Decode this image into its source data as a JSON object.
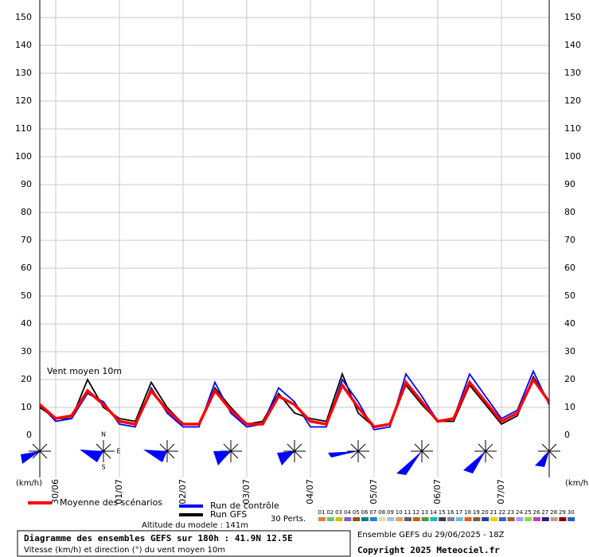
{
  "chart_data": {
    "type": "line",
    "annotation": "Vent moyen 10m",
    "y_unit_left": "(km/h)",
    "y_unit_right": "(km/h)",
    "x": [
      0,
      6,
      12,
      18,
      24,
      30,
      36,
      42,
      48,
      54,
      60,
      66,
      72,
      78,
      84,
      90,
      96,
      102,
      108,
      114,
      120,
      126,
      132,
      138,
      144,
      150,
      156,
      162,
      168,
      174,
      180,
      186,
      192
    ],
    "xlim": [
      0,
      192
    ],
    "xticks": [
      {
        "value": 6,
        "label": "30/06"
      },
      {
        "value": 30,
        "label": "01/07"
      },
      {
        "value": 54,
        "label": "02/07"
      },
      {
        "value": 78,
        "label": "03/07"
      },
      {
        "value": 102,
        "label": "04/07"
      },
      {
        "value": 126,
        "label": "05/07"
      },
      {
        "value": 150,
        "label": "06/07"
      },
      {
        "value": 174,
        "label": "07/07"
      }
    ],
    "ylim": [
      0,
      150
    ],
    "yticks": [
      0,
      10,
      20,
      30,
      40,
      50,
      60,
      70,
      80,
      90,
      100,
      110,
      120,
      130,
      140,
      150
    ],
    "grid": true,
    "series": [
      {
        "name": "Run GFS",
        "color": "#000000",
        "values": [
          10,
          6,
          6,
          20,
          10,
          6,
          5,
          19,
          10,
          4,
          4,
          17,
          10,
          4,
          5,
          15,
          8,
          6,
          5,
          22,
          8,
          3,
          4,
          18,
          11,
          5,
          5,
          18,
          11,
          4,
          7,
          21,
          12
        ]
      },
      {
        "name": "Run de contrôle",
        "color": "#0000ff",
        "values": [
          11,
          5,
          6,
          15,
          12,
          4,
          3,
          17,
          8,
          3,
          3,
          19,
          8,
          3,
          4,
          17,
          12,
          3,
          3,
          20,
          12,
          2,
          3,
          22,
          14,
          5,
          6,
          22,
          14,
          6,
          9,
          23,
          11
        ]
      },
      {
        "name": "Moyenne des scénarios",
        "color": "#ff0000",
        "values": [
          11,
          6,
          7,
          16,
          11,
          5,
          4,
          16,
          9,
          4,
          4,
          16,
          9,
          4,
          4,
          14,
          11,
          5,
          4,
          18,
          10,
          3,
          4,
          19,
          12,
          5,
          6,
          19,
          12,
          5,
          8,
          20,
          12
        ]
      }
    ],
    "perturbations_label": "30 Perts.",
    "perturbations": [
      {
        "name": "01",
        "color": "#e08040"
      },
      {
        "name": "02",
        "color": "#70c070"
      },
      {
        "name": "03",
        "color": "#d0c000"
      },
      {
        "name": "04",
        "color": "#8060c0"
      },
      {
        "name": "05",
        "color": "#905020"
      },
      {
        "name": "06",
        "color": "#008080"
      },
      {
        "name": "07",
        "color": "#2080e0"
      },
      {
        "name": "08",
        "color": "#e0e0a0"
      },
      {
        "name": "09",
        "color": "#a0c0e0"
      },
      {
        "name": "10",
        "color": "#e0a060"
      },
      {
        "name": "11",
        "color": "#606060"
      },
      {
        "name": "12",
        "color": "#c06020"
      },
      {
        "name": "13",
        "color": "#40a040"
      },
      {
        "name": "14",
        "color": "#00c0c0"
      },
      {
        "name": "15",
        "color": "#404040"
      },
      {
        "name": "16",
        "color": "#8080a0"
      },
      {
        "name": "17",
        "color": "#60c0e0"
      },
      {
        "name": "18",
        "color": "#e06020"
      },
      {
        "name": "19",
        "color": "#806040"
      },
      {
        "name": "20",
        "color": "#2040a0"
      },
      {
        "name": "21",
        "color": "#f0d000"
      },
      {
        "name": "22",
        "color": "#4060c0"
      },
      {
        "name": "23",
        "color": "#a06040"
      },
      {
        "name": "24",
        "color": "#a0a0ff"
      },
      {
        "name": "25",
        "color": "#80e040"
      },
      {
        "name": "26",
        "color": "#c040c0"
      },
      {
        "name": "27",
        "color": "#202080"
      },
      {
        "name": "28",
        "color": "#c0a080"
      },
      {
        "name": "29",
        "color": "#800000"
      },
      {
        "name": "30",
        "color": "#2060c0"
      }
    ],
    "compass": {
      "n": "N",
      "e": "E",
      "s": "S"
    },
    "altitude": "Altitude du modele : 141m",
    "box_title": "Diagramme des ensembles GEFS sur 180h : 41.9N 12.5E",
    "box_subtitle": "Vitesse (km/h) et direction (°) du vent moyen 10m",
    "run_info": "Ensemble GEFS du 29/06/2025 - 18Z",
    "copyright": "Copyright 2025 Meteociel.fr"
  }
}
